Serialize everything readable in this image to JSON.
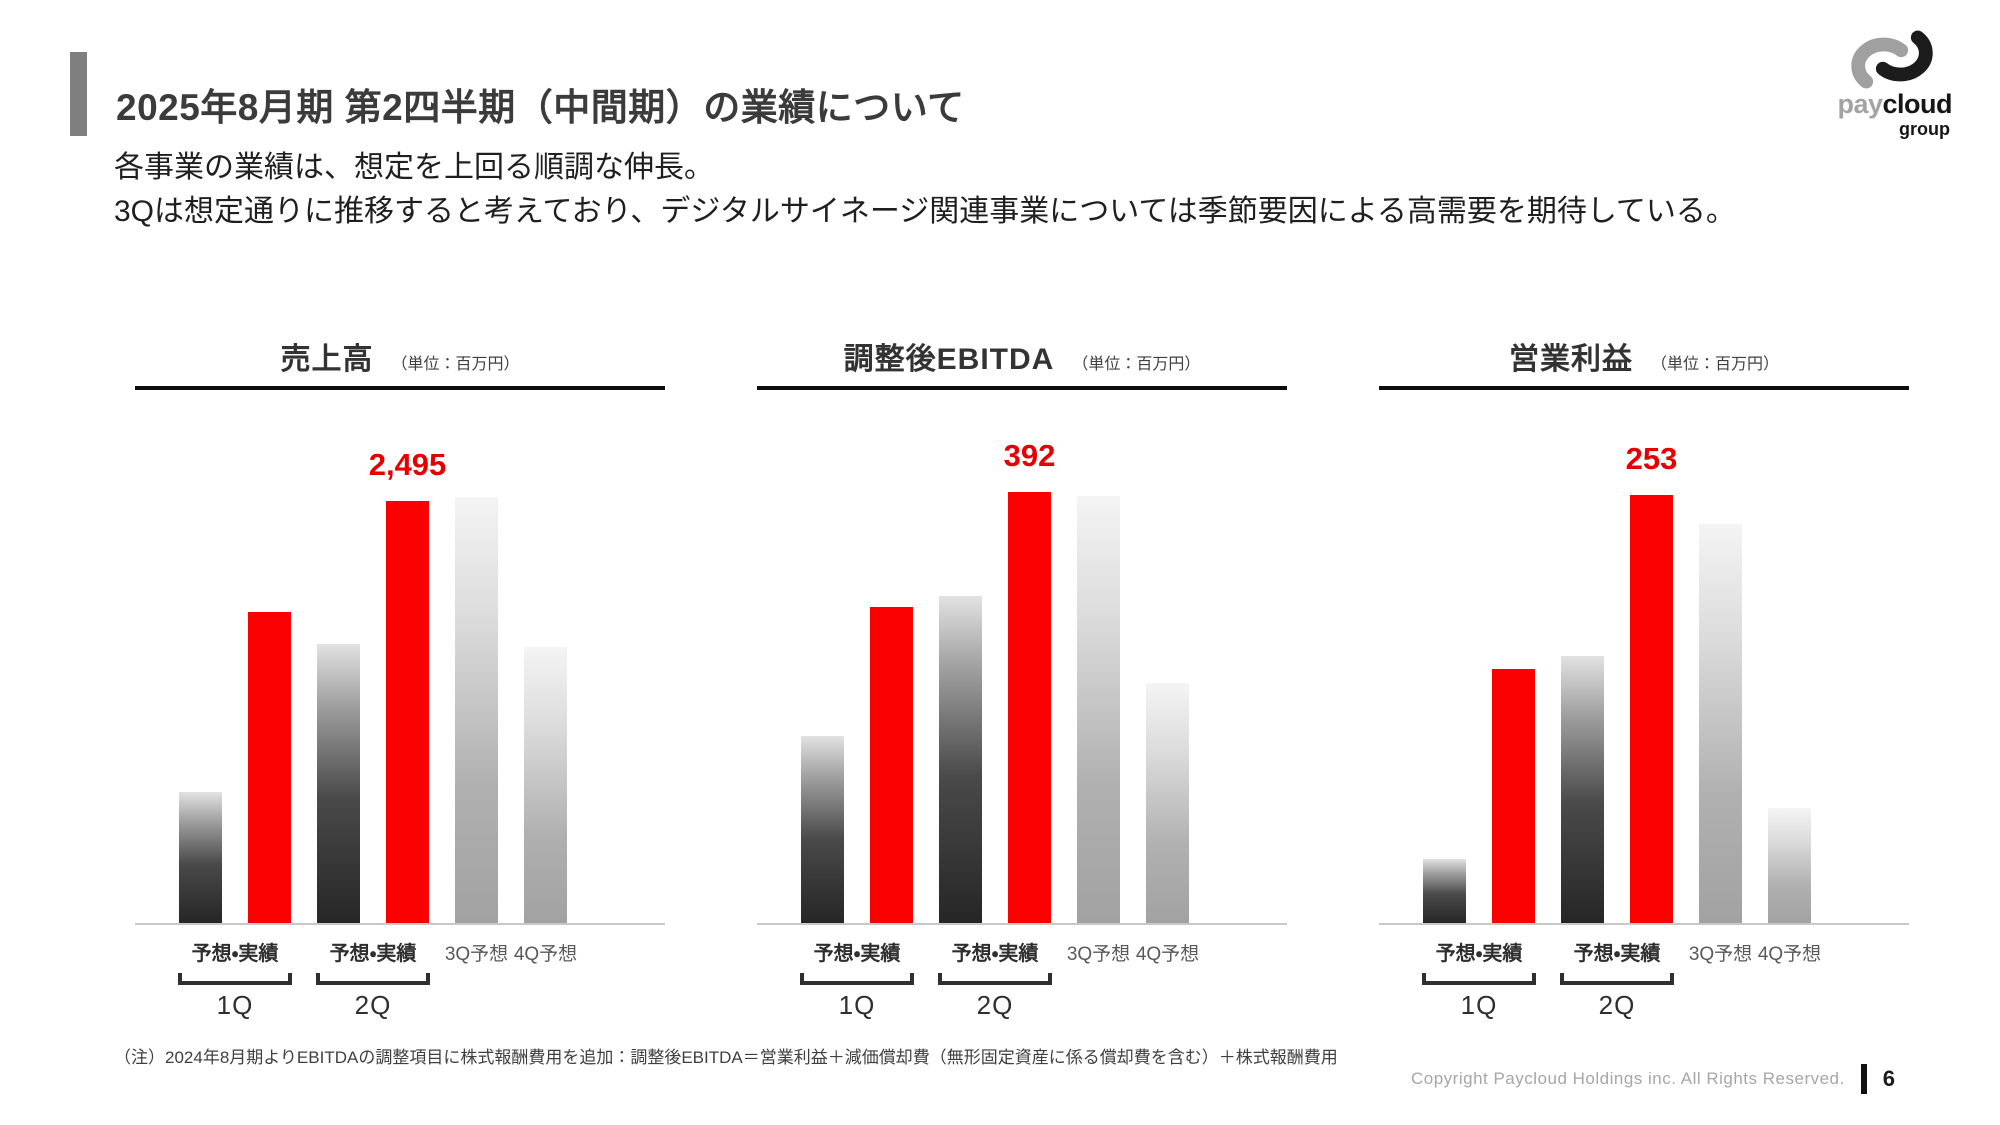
{
  "slide": {
    "title": "2025年8月期 第2四半期（中間期）の業績について",
    "intro_lines": [
      "各事業の業績は、想定を上回る順調な伸長。",
      "3Qは想定通りに推移すると考えており、デジタルサイネージ関連事業については季節要因による高需要を期待している。"
    ],
    "note": "（注）2024年8月期よりEBITDAの調整項目に株式報酬費用を追加：調整後EBITDA＝営業利益＋減価償却費（無形固定資産に係る償却費を含む）＋株式報酬費用",
    "footer": {
      "copyright": "Copyright Paycloud Holdings inc. All Rights Reserved.",
      "page_number": "6"
    },
    "logo": {
      "word_gray": "pay",
      "word_black": "cloud",
      "sub": "group"
    }
  },
  "colors": {
    "bar_red": "#fa0000",
    "label_red": "#e60000",
    "accent_gray": "#7f7f7f",
    "axis_gray": "#c8c8c8",
    "copyright_gray": "#a6a6a6",
    "forecast_dark_bottom": "#262626",
    "forecast_light_bottom": "#a2a2a2"
  },
  "chart_data": [
    {
      "id": "revenue",
      "type": "bar",
      "title": "売上高",
      "unit_label": "（単位：百万円）",
      "categories": [
        "1Q予想",
        "1Q実績",
        "2Q予想",
        "2Q実績",
        "3Q予想",
        "4Q予想"
      ],
      "values": [
        775,
        1840,
        1650,
        2495,
        2520,
        1630
      ],
      "bar_styles": [
        "forecast-dark",
        "actual",
        "forecast-dark",
        "actual",
        "forecast-light",
        "forecast-light"
      ],
      "highlight": {
        "index": 3,
        "text": "2,495"
      },
      "ylim": [
        0,
        2600
      ],
      "grid": false,
      "legend": "none",
      "x_axis": {
        "pair_labels": [
          "予想・実績",
          "予想・実績"
        ],
        "single_labels": [
          "3Q予想",
          "4Q予想"
        ],
        "group_labels": [
          "1Q",
          "2Q"
        ]
      }
    },
    {
      "id": "adjusted-ebitda",
      "type": "bar",
      "title": "調整後EBITDA",
      "unit_label": "（単位：百万円）",
      "categories": [
        "1Q予想",
        "1Q実績",
        "2Q予想",
        "2Q実績",
        "3Q予想",
        "4Q予想"
      ],
      "values": [
        170,
        287,
        297,
        392,
        388,
        218
      ],
      "bar_styles": [
        "forecast-dark",
        "actual",
        "forecast-dark",
        "actual",
        "forecast-light",
        "forecast-light"
      ],
      "highlight": {
        "index": 3,
        "text": "392"
      },
      "ylim": [
        0,
        400
      ],
      "grid": false,
      "legend": "none",
      "x_axis": {
        "pair_labels": [
          "予想・実績",
          "予想・実績"
        ],
        "single_labels": [
          "3Q予想",
          "4Q予想"
        ],
        "group_labels": [
          "1Q",
          "2Q"
        ]
      }
    },
    {
      "id": "operating-profit",
      "type": "bar",
      "title": "営業利益",
      "unit_label": "（単位：百万円）",
      "categories": [
        "1Q予想",
        "1Q実績",
        "2Q予想",
        "2Q実績",
        "3Q予想",
        "4Q予想"
      ],
      "values": [
        38,
        150,
        158,
        253,
        236,
        68
      ],
      "bar_styles": [
        "forecast-dark",
        "actual",
        "forecast-dark",
        "actual",
        "forecast-light",
        "forecast-light"
      ],
      "highlight": {
        "index": 3,
        "text": "253"
      },
      "ylim": [
        0,
        260
      ],
      "grid": false,
      "legend": "none",
      "x_axis": {
        "pair_labels": [
          "予想・実績",
          "予想・実績"
        ],
        "single_labels": [
          "3Q予想",
          "4Q予想"
        ],
        "group_labels": [
          "1Q",
          "2Q"
        ]
      }
    }
  ]
}
